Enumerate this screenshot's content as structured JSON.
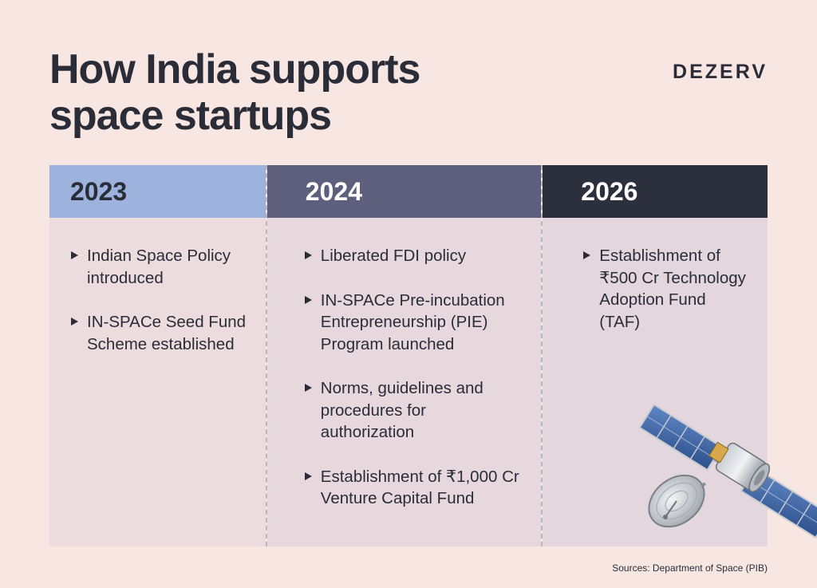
{
  "title": {
    "line1": "How India supports",
    "line2": "space startups"
  },
  "brand": "DEZERV",
  "columns": [
    {
      "year": "2023",
      "items": [
        "Indian Space Policy introduced",
        "IN-SPACe Seed Fund Scheme established"
      ]
    },
    {
      "year": "2024",
      "items": [
        "Liberated FDI policy",
        "IN-SPACe Pre-incubation Entrepreneurship (PIE) Program launched",
        "Norms, guidelines and procedures for authorization",
        "Establishment of ₹1,000 Cr Venture Capital Fund"
      ]
    },
    {
      "year": "2026",
      "items": [
        "Establishment of ₹500 Cr Technology Adoption Fund (TAF)"
      ]
    }
  ],
  "illustration": {
    "icon": "satellite-icon"
  },
  "sources": "Sources: Department of Space (PIB)"
}
